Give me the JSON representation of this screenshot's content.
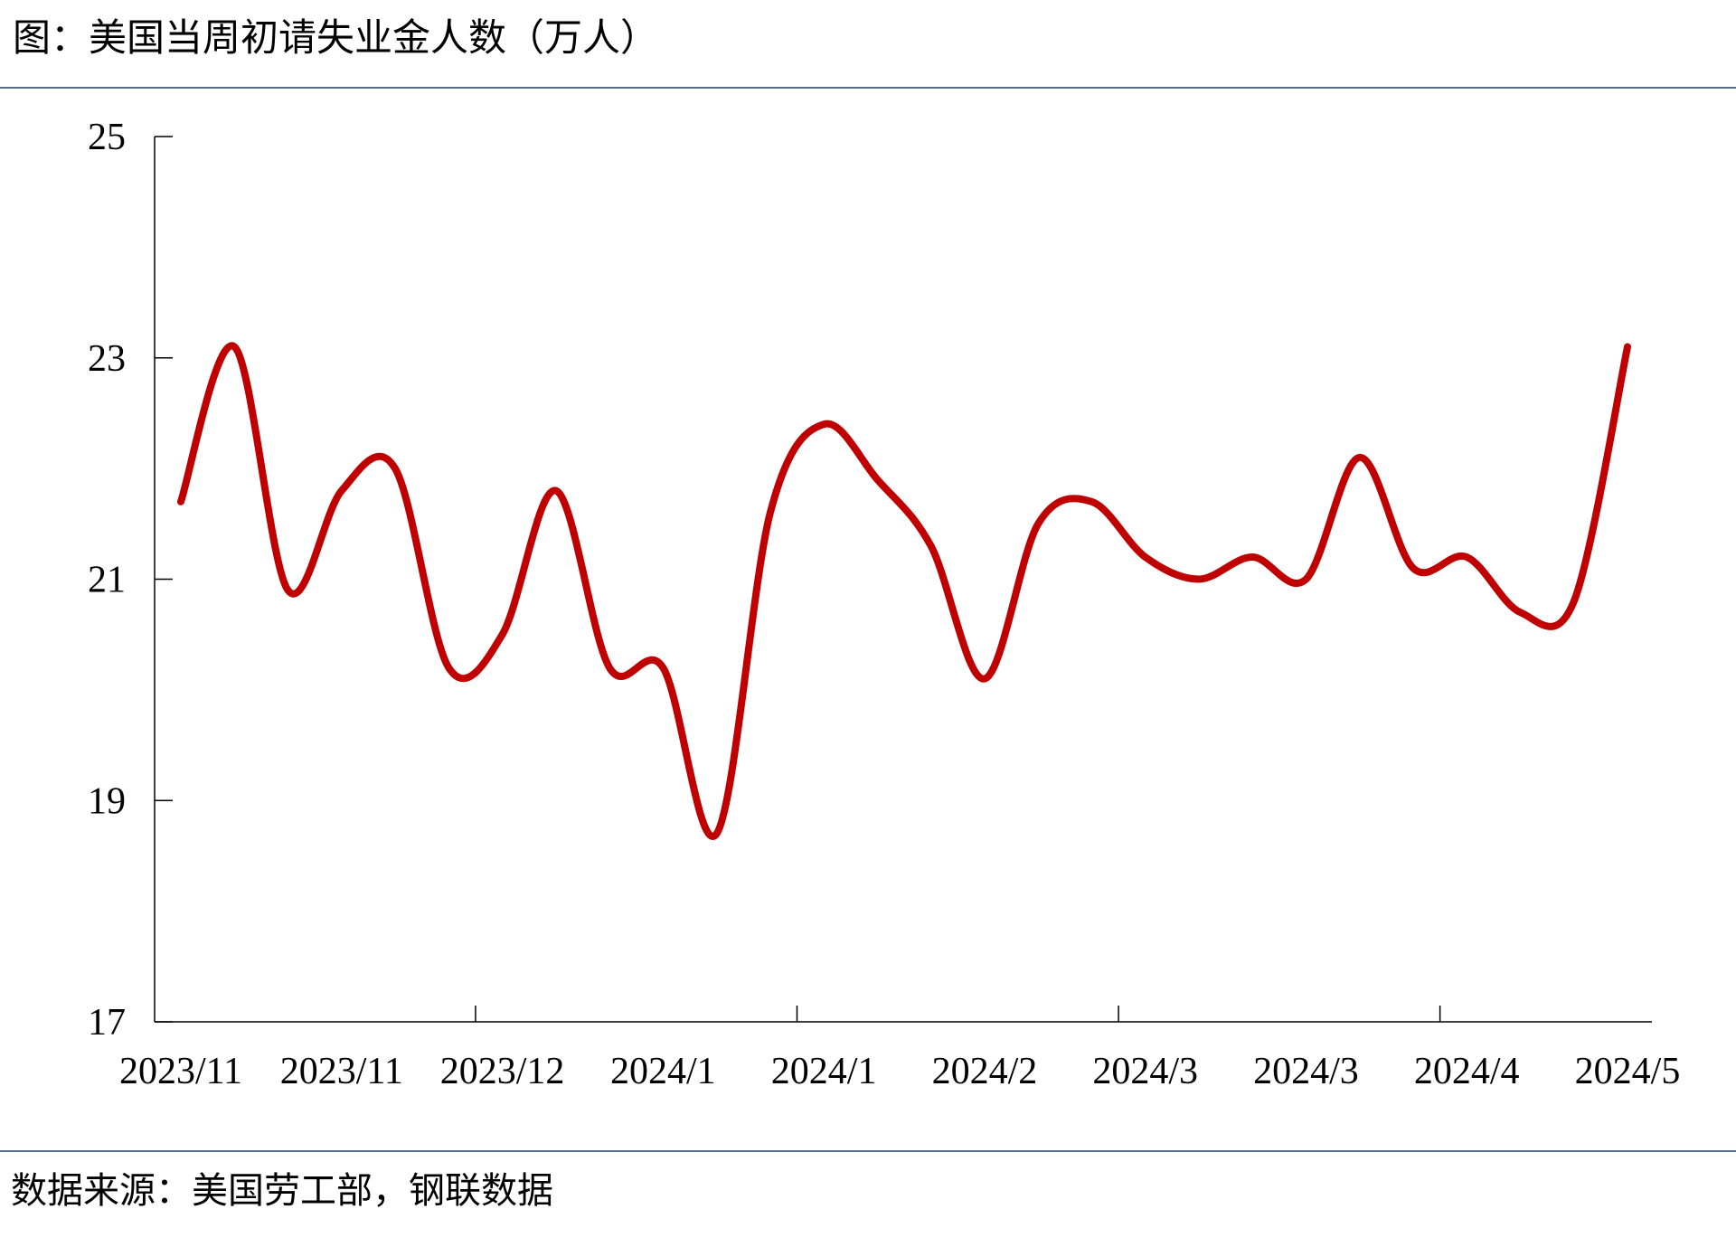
{
  "chart_data": {
    "type": "line",
    "title": "图：美国当周初请失业金人数（万人）",
    "source": "数据来源：美国劳工部，钢联数据",
    "categories": [
      "2023/11",
      null,
      null,
      "2023/11",
      null,
      null,
      "2023/12",
      null,
      null,
      "2024/1",
      null,
      null,
      "2024/1",
      null,
      null,
      "2024/2",
      null,
      null,
      "2024/3",
      null,
      null,
      "2024/3",
      null,
      null,
      "2024/4",
      null,
      null,
      "2024/5"
    ],
    "series": [
      {
        "color": "#c00000",
        "values": [
          21.7,
          23.1,
          20.9,
          21.8,
          22.0,
          20.2,
          20.5,
          21.8,
          20.2,
          20.2,
          18.7,
          21.6,
          22.4,
          21.9,
          21.3,
          20.1,
          21.5,
          21.7,
          21.2,
          21.0,
          21.2,
          21.0,
          22.1,
          21.1,
          21.2,
          20.7,
          20.8,
          23.1
        ]
      }
    ],
    "ylim": [
      17,
      25
    ],
    "yticks": [
      17,
      19,
      21,
      23,
      25
    ],
    "grid": false
  }
}
